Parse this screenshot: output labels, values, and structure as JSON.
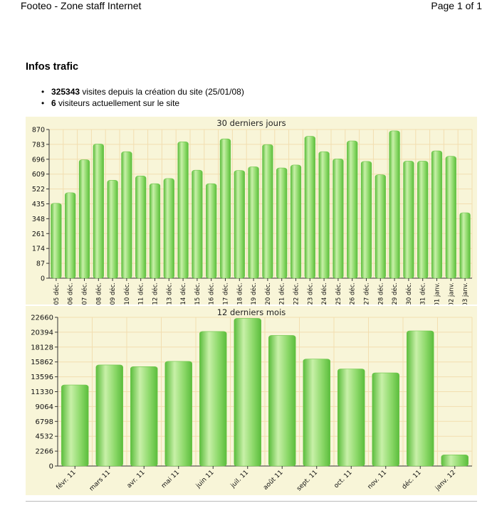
{
  "header": {
    "title": "Footeo - Zone staff Internet",
    "page_label": "Page 1 of 1"
  },
  "section": {
    "title": "Infos trafic"
  },
  "stats": [
    {
      "bullet": "•",
      "value": "325343",
      "text": " visites depuis la création du site (25/01/08)"
    },
    {
      "bullet": "•",
      "value": "6",
      "text": " visiteurs actuellement sur le site"
    }
  ],
  "colors": {
    "panel_bg": "#f8f5d8",
    "grid": "#f2deb0",
    "bar_light": "#c8f0a8",
    "bar_mid": "#8dd96a",
    "bar_dark": "#5bbd3c",
    "title_bg": "#ede9c4"
  },
  "chart_data": [
    {
      "type": "bar",
      "title": "30 derniers jours",
      "categories": [
        "05 déc.",
        "06 déc.",
        "07 déc.",
        "08 déc.",
        "09 déc.",
        "10 déc.",
        "11 déc.",
        "12 déc.",
        "13 déc.",
        "14 déc.",
        "15 déc.",
        "16 déc.",
        "17 déc.",
        "18 déc.",
        "19 déc.",
        "20 déc.",
        "21 déc.",
        "22 déc.",
        "23 déc.",
        "24 déc.",
        "25 déc.",
        "26 déc.",
        "27 déc.",
        "28 déc.",
        "29 déc.",
        "30 déc.",
        "31 déc.",
        "01 janv.",
        "02 janv.",
        "03 janv."
      ],
      "values": [
        438,
        500,
        693,
        785,
        573,
        740,
        598,
        553,
        583,
        798,
        632,
        553,
        815,
        630,
        652,
        782,
        645,
        662,
        830,
        740,
        698,
        803,
        683,
        605,
        862,
        685,
        685,
        745,
        713,
        383
      ],
      "yticks": [
        0,
        87,
        174,
        261,
        348,
        435,
        522,
        609,
        696,
        783,
        870
      ],
      "ylim": [
        0,
        870
      ],
      "label_angle": -90
    },
    {
      "type": "bar",
      "title": "12 derniers mois",
      "categories": [
        "févr. 11",
        "mars 11",
        "avr. 11",
        "mai 11",
        "juin 11",
        "juil. 11",
        "août 11",
        "sept. 11",
        "oct. 11",
        "nov. 11",
        "déc. 11",
        "janv. 12"
      ],
      "values": [
        12350,
        15400,
        15150,
        15950,
        20500,
        22500,
        19900,
        16300,
        14800,
        14200,
        20600,
        1700
      ],
      "yticks": [
        0,
        2266,
        4532,
        6798,
        9064,
        11330,
        13596,
        15862,
        18128,
        20394,
        22660
      ],
      "ylim": [
        0,
        22660
      ],
      "label_angle": -45
    }
  ]
}
